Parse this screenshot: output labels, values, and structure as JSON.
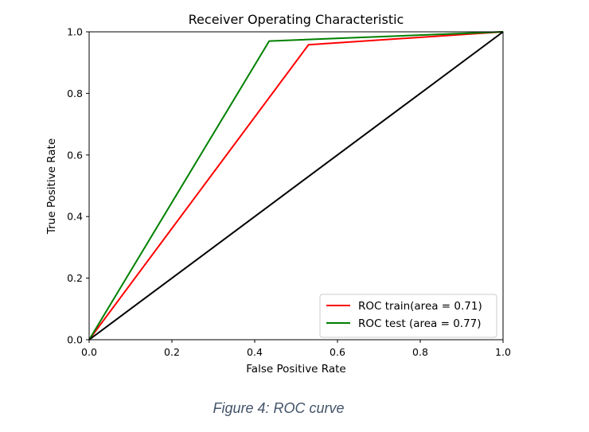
{
  "caption": "Figure 4: ROC curve",
  "chart_data": {
    "type": "line",
    "title": "Receiver Operating Characteristic",
    "xlabel": "False Positive Rate",
    "ylabel": "True Positive Rate",
    "xlim": [
      0.0,
      1.0
    ],
    "ylim": [
      0.0,
      1.0
    ],
    "xticks": [
      "0.0",
      "0.2",
      "0.4",
      "0.6",
      "0.8",
      "1.0"
    ],
    "yticks": [
      "0.0",
      "0.2",
      "0.4",
      "0.6",
      "0.8",
      "1.0"
    ],
    "grid": false,
    "legend_position": "lower right",
    "series": [
      {
        "name": "ROC train(area = 0.71)",
        "color": "#ff0000",
        "x": [
          0.0,
          0.53,
          1.0
        ],
        "y": [
          0.0,
          0.958,
          1.0
        ]
      },
      {
        "name": "ROC test (area = 0.77)",
        "color": "#008000",
        "x": [
          0.0,
          0.435,
          1.0
        ],
        "y": [
          0.0,
          0.97,
          1.0
        ]
      },
      {
        "name": "",
        "color": "#000000",
        "in_legend": false,
        "x": [
          0.0,
          1.0
        ],
        "y": [
          0.0,
          1.0
        ]
      }
    ]
  }
}
